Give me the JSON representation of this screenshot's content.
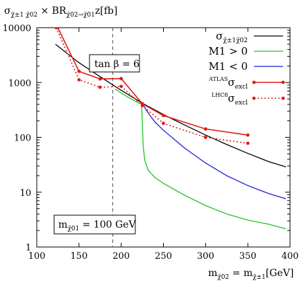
{
  "chart_data": {
    "type": "line",
    "title": "",
    "ylabel_parts": {
      "sigma": "σ",
      "sigma_sub": "χ̃±1 χ̃02",
      "times_br": " × BR",
      "br_sub": "χ̃02→χ̃01",
      "z": "z",
      "unit": "[fb]"
    },
    "xlabel_parts": {
      "m1": "m",
      "m1_sub": "χ̃02",
      "eq": " = m",
      "m2_sub": "χ̃±1",
      "unit": "[GeV]"
    },
    "x_scale": "linear",
    "y_scale": "log",
    "xlim": [
      100,
      400
    ],
    "ylim": [
      1,
      10000
    ],
    "x_ticks": [
      "100",
      "150",
      "200",
      "250",
      "300",
      "350",
      "400"
    ],
    "y_ticks": [
      "1",
      "10",
      "100",
      "1000",
      "10000"
    ],
    "x_tick_values": [
      100,
      150,
      200,
      250,
      300,
      350,
      400
    ],
    "y_tick_values": [
      1,
      10,
      100,
      1000,
      10000
    ],
    "annotations": {
      "tanbeta": "tan β = 6",
      "mass_pre": "m",
      "mass_sub": "χ̃01",
      "mass_post": " = 100 GeV"
    },
    "vline_x": 190,
    "legend_position": "top-right",
    "legend": [
      {
        "main": "σ",
        "sub": "χ̃±1χ̃02",
        "sup": "",
        "color": "#000000",
        "dash": "solid",
        "markers": false
      },
      {
        "main": "M1 > 0",
        "sub": "",
        "sup": "",
        "color": "#22c322",
        "dash": "solid",
        "markers": false
      },
      {
        "main": "M1 < 0",
        "sub": "",
        "sup": "",
        "color": "#1f1fd6",
        "dash": "solid",
        "markers": false
      },
      {
        "main": "σ",
        "sub": "excl",
        "sup": "ATLAS",
        "color": "#e01b1b",
        "dash": "solid",
        "markers": true
      },
      {
        "main": "σ",
        "sub": "excl",
        "sup": "LHC8",
        "color": "#e01b1b",
        "dash": "dotted",
        "markers": true
      }
    ],
    "series": [
      {
        "name": "σχ̃±1χ̃02",
        "color": "#000000",
        "dash": "solid",
        "markers": false,
        "points": [
          [
            122,
            5000
          ],
          [
            150,
            2300
          ],
          [
            175,
            1280
          ],
          [
            200,
            720
          ],
          [
            225,
            420
          ],
          [
            250,
            260
          ],
          [
            275,
            168
          ],
          [
            300,
            110
          ],
          [
            325,
            74
          ],
          [
            350,
            51
          ],
          [
            375,
            36
          ],
          [
            395,
            29
          ]
        ]
      },
      {
        "name": "M1 > 0",
        "color": "#22c322",
        "dash": "solid",
        "markers": false,
        "points": [
          [
            193,
            760
          ],
          [
            200,
            640
          ],
          [
            210,
            520
          ],
          [
            220,
            430
          ],
          [
            224,
            410
          ],
          [
            225,
            200
          ],
          [
            226,
            70
          ],
          [
            228,
            38
          ],
          [
            232,
            25
          ],
          [
            240,
            18.5
          ],
          [
            250,
            14.5
          ],
          [
            275,
            8.8
          ],
          [
            300,
            5.7
          ],
          [
            325,
            4.0
          ],
          [
            350,
            3.1
          ],
          [
            375,
            2.6
          ],
          [
            395,
            2.15
          ]
        ]
      },
      {
        "name": "M1 < 0",
        "color": "#1f1fd6",
        "dash": "solid",
        "markers": false,
        "points": [
          [
            225,
            420
          ],
          [
            230,
            310
          ],
          [
            235,
            240
          ],
          [
            240,
            190
          ],
          [
            250,
            135
          ],
          [
            275,
            64
          ],
          [
            300,
            34
          ],
          [
            325,
            20
          ],
          [
            350,
            13.2
          ],
          [
            375,
            9.4
          ],
          [
            395,
            7.6
          ]
        ]
      },
      {
        "name": "ATLAS σexcl",
        "color": "#e01b1b",
        "dash": "solid",
        "markers": true,
        "points": [
          [
            125,
            10000
          ],
          [
            150,
            1600
          ],
          [
            175,
            1160
          ],
          [
            200,
            1180
          ],
          [
            225,
            410
          ],
          [
            250,
            250
          ],
          [
            300,
            142
          ],
          [
            350,
            110
          ]
        ]
      },
      {
        "name": "LHC8 σexcl",
        "color": "#e01b1b",
        "dash": "dotted",
        "markers": true,
        "points": [
          [
            123,
            10000
          ],
          [
            150,
            1120
          ],
          [
            175,
            820
          ],
          [
            200,
            850
          ],
          [
            225,
            380
          ],
          [
            250,
            180
          ],
          [
            300,
            100
          ],
          [
            350,
            78
          ]
        ]
      }
    ]
  }
}
